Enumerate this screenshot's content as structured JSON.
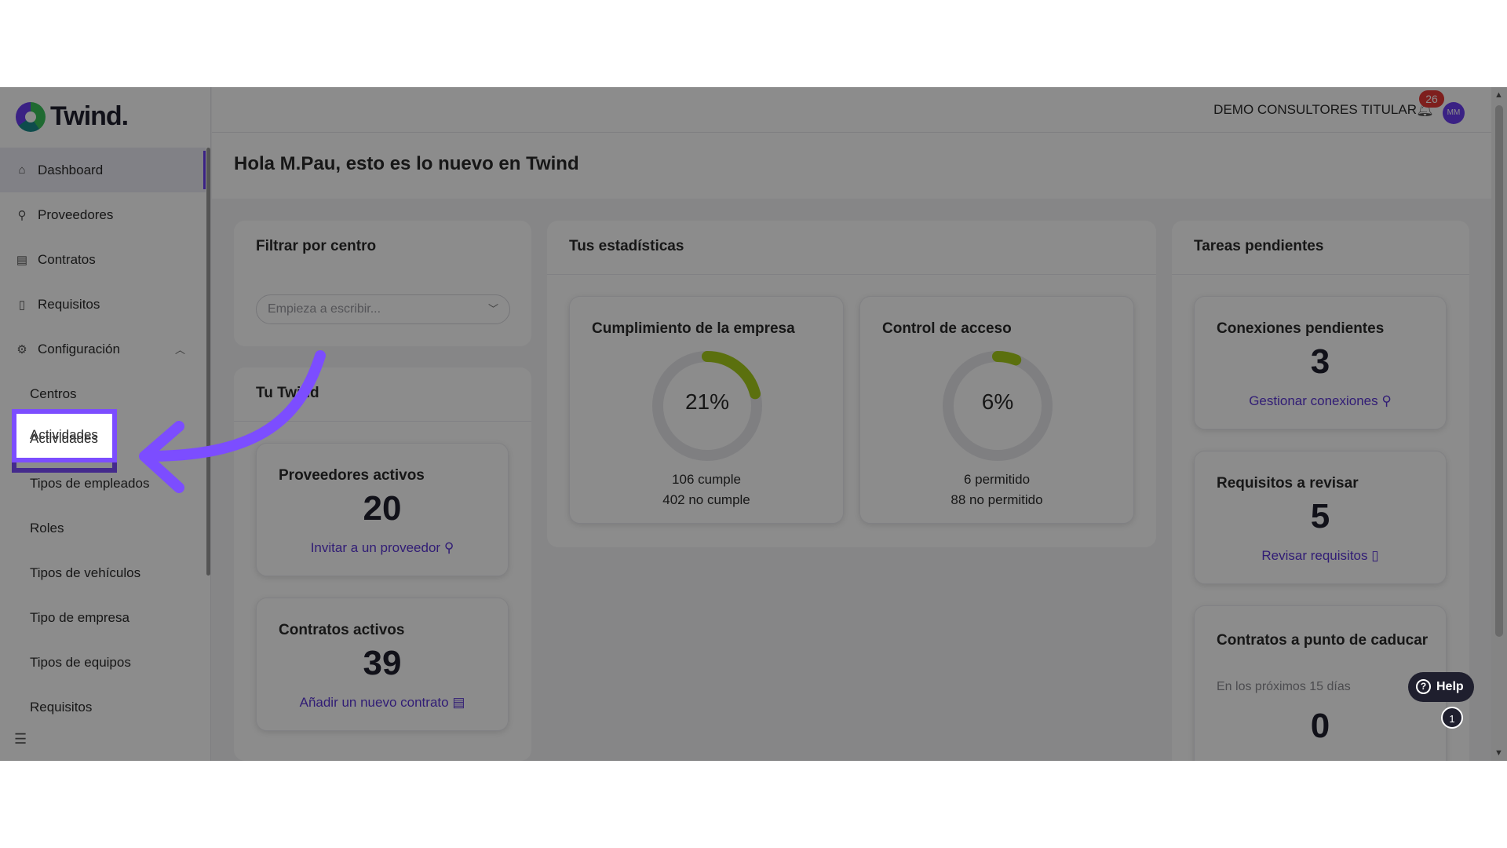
{
  "app": {
    "logo_text": "Twind."
  },
  "sidebar": {
    "items": [
      {
        "label": "Dashboard",
        "icon": "home-icon"
      },
      {
        "label": "Proveedores",
        "icon": "link-icon"
      },
      {
        "label": "Contratos",
        "icon": "contract-icon"
      },
      {
        "label": "Requisitos",
        "icon": "document-icon"
      },
      {
        "label": "Configuración",
        "icon": "gear-icon"
      }
    ],
    "sub_items": [
      "Centros",
      "Actividades",
      "Tipos de empleados",
      "Roles",
      "Tipos de vehículos",
      "Tipo de empresa",
      "Tipos de equipos",
      "Requisitos"
    ]
  },
  "topbar": {
    "company": "DEMO CONSULTORES TITULAR",
    "notifications": "26",
    "avatar_initials": "MM"
  },
  "greeting": "Hola M.Pau, esto es lo nuevo en Twind",
  "filter": {
    "title": "Filtrar por centro",
    "placeholder": "Empieza a escribir..."
  },
  "tu_twind": {
    "title": "Tu Twind",
    "proveedores": {
      "title": "Proveedores activos",
      "value": "20",
      "link": "Invitar a un proveedor"
    },
    "contratos": {
      "title": "Contratos activos",
      "value": "39",
      "link": "Añadir un nuevo contrato"
    }
  },
  "stats": {
    "title": "Tus estadísticas",
    "cumplimiento": {
      "title": "Cumplimiento de la empresa",
      "percent": 21,
      "percent_label": "21%",
      "line1": "106 cumple",
      "line2": "402 no cumple"
    },
    "acceso": {
      "title": "Control de acceso",
      "percent": 6,
      "percent_label": "6%",
      "line1": "6 permitido",
      "line2": "88 no permitido"
    }
  },
  "tareas": {
    "title": "Tareas pendientes",
    "conexiones": {
      "title": "Conexiones pendientes",
      "value": "3",
      "link": "Gestionar conexiones"
    },
    "requisitos": {
      "title": "Requisitos a revisar",
      "value": "5",
      "link": "Revisar requisitos"
    },
    "caducar": {
      "title": "Contratos a punto de caducar",
      "note": "En los próximos 15 días",
      "value": "0"
    }
  },
  "help": {
    "label": "Help",
    "count": "1"
  },
  "colors": {
    "accent": "#6b3df0",
    "donut": "#a6cc1a",
    "arrow": "#7c4dff"
  }
}
